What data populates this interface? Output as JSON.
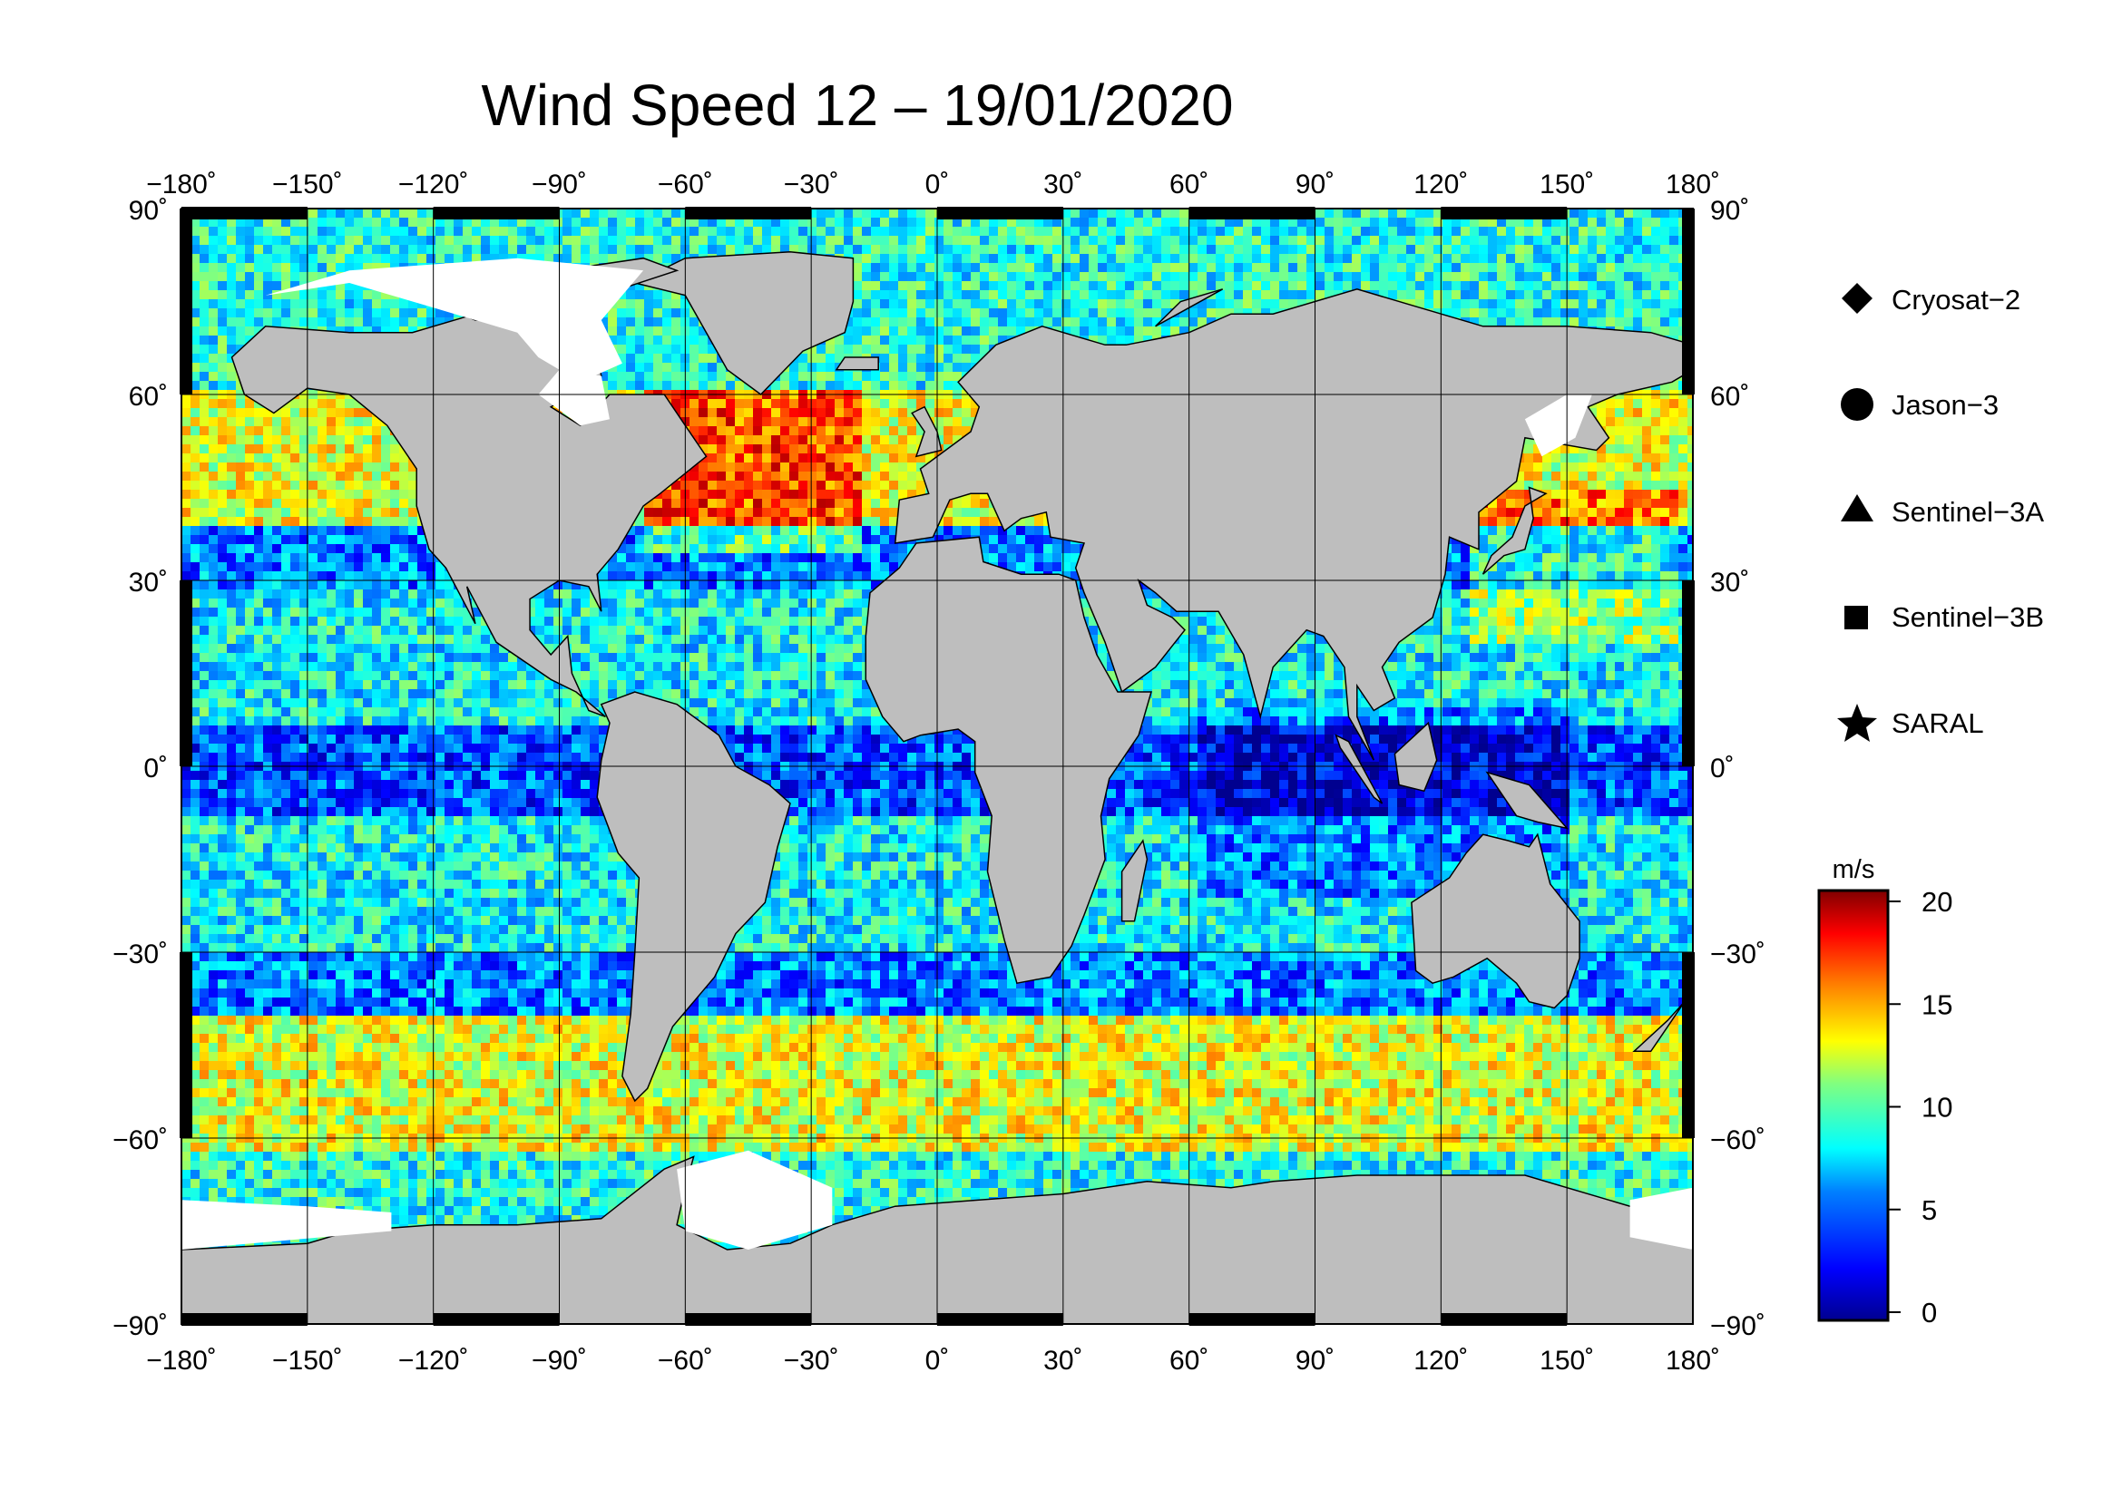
{
  "title": "Wind Speed 12 – 19/01/2020",
  "map": {
    "lon_ticks": [
      "−180˚",
      "−150˚",
      "−120˚",
      "−90˚",
      "−60˚",
      "−30˚",
      "0˚",
      "30˚",
      "60˚",
      "90˚",
      "120˚",
      "150˚",
      "180˚"
    ],
    "lat_ticks": [
      "90˚",
      "60˚",
      "30˚",
      "0˚",
      "−30˚",
      "−60˚",
      "−90˚"
    ],
    "lat_ticks_right": [
      "90˚",
      "60˚",
      "30˚",
      "0˚",
      "−30˚",
      "−60˚",
      "−90˚"
    ],
    "land_color": "#bebebe",
    "ice_color": "#ffffff",
    "grid_color": "#000000"
  },
  "legend": {
    "items": [
      {
        "label": "Cryosat−2",
        "icon": "diamond-icon"
      },
      {
        "label": "Jason−3",
        "icon": "circle-icon"
      },
      {
        "label": "Sentinel−3A",
        "icon": "triangle-icon"
      },
      {
        "label": "Sentinel−3B",
        "icon": "square-icon"
      },
      {
        "label": "SARAL",
        "icon": "star-icon"
      }
    ]
  },
  "colorbar": {
    "unit": "m/s",
    "ticks": [
      "20",
      "15",
      "10",
      "5",
      "0"
    ],
    "range": [
      0,
      20
    ],
    "colors": [
      "#00008f",
      "#0000ff",
      "#0080ff",
      "#00ffff",
      "#80ff80",
      "#ffff00",
      "#ff8000",
      "#ff0000",
      "#800000"
    ]
  },
  "chart_data": {
    "type": "heatmap",
    "title": "Wind Speed 12 – 19/01/2020",
    "xlim": [
      -180,
      180
    ],
    "ylim": [
      -90,
      90
    ],
    "value_range": [
      0,
      20
    ],
    "unit": "m/s",
    "colormap": "jet"
  }
}
